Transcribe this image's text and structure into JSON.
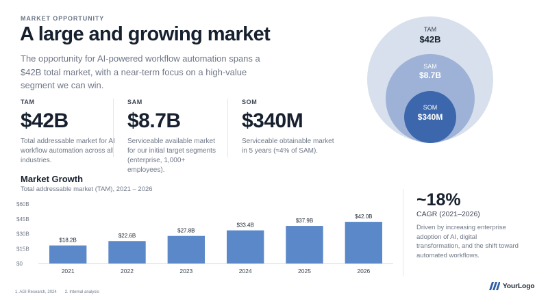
{
  "eyebrow": "MARKET OPPORTUNITY",
  "title": "A large and growing market",
  "subtitle": "The opportunity for AI-powered workflow automation spans a $42B total market, with a near-term focus on a high-value segment we can win.",
  "metrics": [
    {
      "label": "TAM",
      "value": "$42B",
      "desc": "Total addressable market for AI workflow automation across all industries."
    },
    {
      "label": "SAM",
      "value": "$8.7B",
      "desc": "Serviceable available market for our initial target segments (enterprise, 1,000+ employees)."
    },
    {
      "label": "SOM",
      "value": "$340M",
      "desc": "Serviceable obtainable market in 5 years (≈4% of SAM)."
    }
  ],
  "circles": [
    {
      "label": "TAM",
      "value": "$42B",
      "color": "#d7e0ec"
    },
    {
      "label": "SAM",
      "value": "$8.7B",
      "color": "#9db2d6"
    },
    {
      "label": "SOM",
      "value": "$340M",
      "color": "#3d67ad"
    }
  ],
  "growth": {
    "title": "Market Growth",
    "subtitle": "Total addressable market (TAM), 2021 – 2026"
  },
  "chart_data": {
    "type": "bar",
    "categories": [
      "2021",
      "2022",
      "2023",
      "2024",
      "2025",
      "2026"
    ],
    "values": [
      18.2,
      22.6,
      27.8,
      33.4,
      37.9,
      42.0
    ],
    "data_labels": [
      "$18.2B",
      "$22.6B",
      "$27.8B",
      "$33.4B",
      "$37.9B",
      "$42.0B"
    ],
    "ylim": [
      0,
      60
    ],
    "yticks": [
      0,
      15,
      30,
      45,
      60
    ],
    "ytick_labels": [
      "$0",
      "$15B",
      "$30B",
      "$45B",
      "$60B"
    ],
    "title": "",
    "xlabel": "",
    "ylabel": "",
    "grid": false,
    "bar_color": "#5b88c9"
  },
  "cagr": {
    "value": "~18%",
    "label": "CAGR (2021–2026)",
    "desc": "Driven by increasing enterprise adoption of AI, digital transformation, and the shift toward automated workflows."
  },
  "footnotes": [
    "1.  AGI Research, 2024",
    "2.  Internal analysis"
  ],
  "logo": {
    "text": "YourLogo",
    "icon": "logo-stripes-icon",
    "color": "#2f5fa8"
  }
}
